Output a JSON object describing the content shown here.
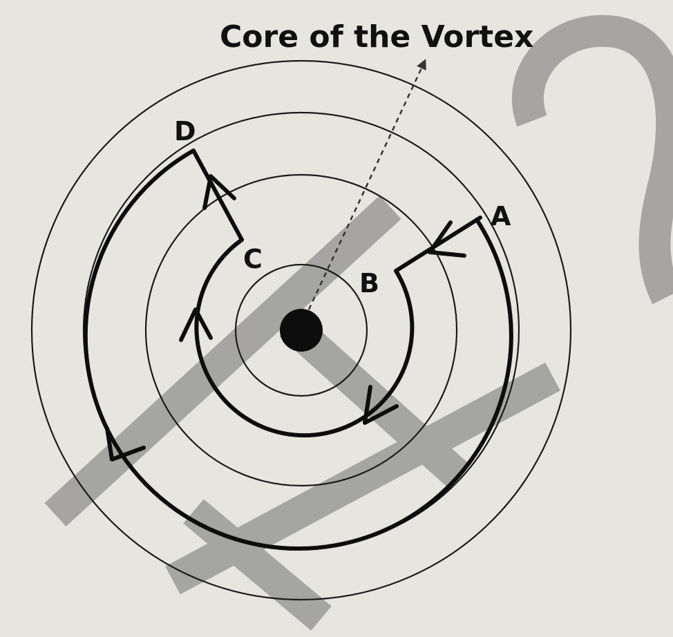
{
  "diagram": {
    "title": "Core of the Vortex",
    "points": {
      "A": "A",
      "B": "B",
      "C": "C",
      "D": "D"
    },
    "colors": {
      "background": "#e6e5e0",
      "ink": "#111111",
      "watermark": "#9a9a98"
    }
  }
}
